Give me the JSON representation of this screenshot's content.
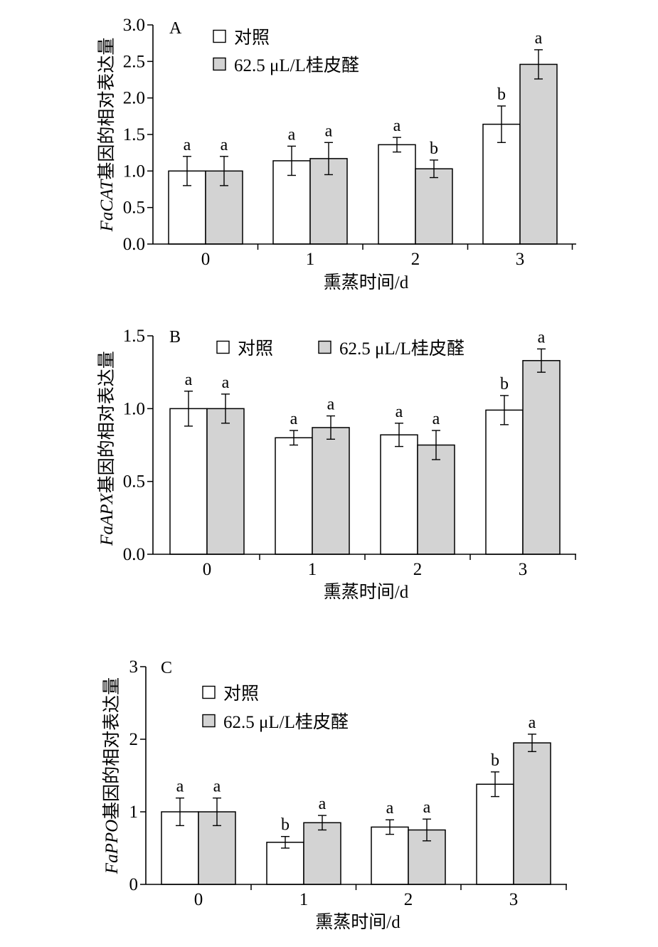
{
  "legend": {
    "control": "对照",
    "treatment": "62.5 μL/L桂皮醛"
  },
  "colors": {
    "control": "#ffffff",
    "treatment": "#d3d3d3",
    "stroke": "#000000"
  },
  "chart_data": [
    {
      "type": "bar",
      "panel_label": "A",
      "gene": "FaCAT",
      "ylabel_suffix": "基因的相对表达量",
      "xlabel": "熏蒸时间/d",
      "categories": [
        "0",
        "1",
        "2",
        "3"
      ],
      "ylim": [
        0,
        3.0
      ],
      "yticks": [
        "0.0",
        "0.5",
        "1.0",
        "1.5",
        "2.0",
        "2.5",
        "3.0"
      ],
      "legend_layout": "stacked",
      "series": [
        {
          "name": "对照",
          "values": [
            1.0,
            1.14,
            1.36,
            1.64
          ],
          "errors": [
            0.2,
            0.2,
            0.1,
            0.25
          ],
          "sig": [
            "a",
            "a",
            "a",
            "b"
          ]
        },
        {
          "name": "62.5 μL/L桂皮醛",
          "values": [
            1.0,
            1.17,
            1.03,
            2.46
          ],
          "errors": [
            0.2,
            0.22,
            0.12,
            0.2
          ],
          "sig": [
            "a",
            "a",
            "b",
            "a"
          ]
        }
      ]
    },
    {
      "type": "bar",
      "panel_label": "B",
      "gene": "FaAPX",
      "ylabel_suffix": "基因的相对表达量",
      "xlabel": "熏蒸时间/d",
      "categories": [
        "0",
        "1",
        "2",
        "3"
      ],
      "ylim": [
        0,
        1.5
      ],
      "yticks": [
        "0.0",
        "0.5",
        "1.0",
        "1.5"
      ],
      "legend_layout": "inline",
      "series": [
        {
          "name": "对照",
          "values": [
            1.0,
            0.8,
            0.82,
            0.99
          ],
          "errors": [
            0.12,
            0.05,
            0.08,
            0.1
          ],
          "sig": [
            "a",
            "a",
            "a",
            "b"
          ]
        },
        {
          "name": "62.5 μL/L桂皮醛",
          "values": [
            1.0,
            0.87,
            0.75,
            1.33
          ],
          "errors": [
            0.1,
            0.08,
            0.1,
            0.08
          ],
          "sig": [
            "a",
            "a",
            "a",
            "a"
          ]
        }
      ]
    },
    {
      "type": "bar",
      "panel_label": "C",
      "gene": "FaPPO",
      "ylabel_suffix": "基因的相对表达量",
      "xlabel": "熏蒸时间/d",
      "categories": [
        "0",
        "1",
        "2",
        "3"
      ],
      "ylim": [
        0,
        3
      ],
      "yticks": [
        "0",
        "1",
        "2",
        "3"
      ],
      "legend_layout": "stacked",
      "series": [
        {
          "name": "对照",
          "values": [
            1.0,
            0.58,
            0.79,
            1.38
          ],
          "errors": [
            0.19,
            0.08,
            0.1,
            0.17
          ],
          "sig": [
            "a",
            "b",
            "a",
            "b"
          ]
        },
        {
          "name": "62.5 μL/L桂皮醛",
          "values": [
            1.0,
            0.85,
            0.75,
            1.95
          ],
          "errors": [
            0.19,
            0.1,
            0.15,
            0.12
          ],
          "sig": [
            "a",
            "a",
            "a",
            "a"
          ]
        }
      ]
    }
  ]
}
